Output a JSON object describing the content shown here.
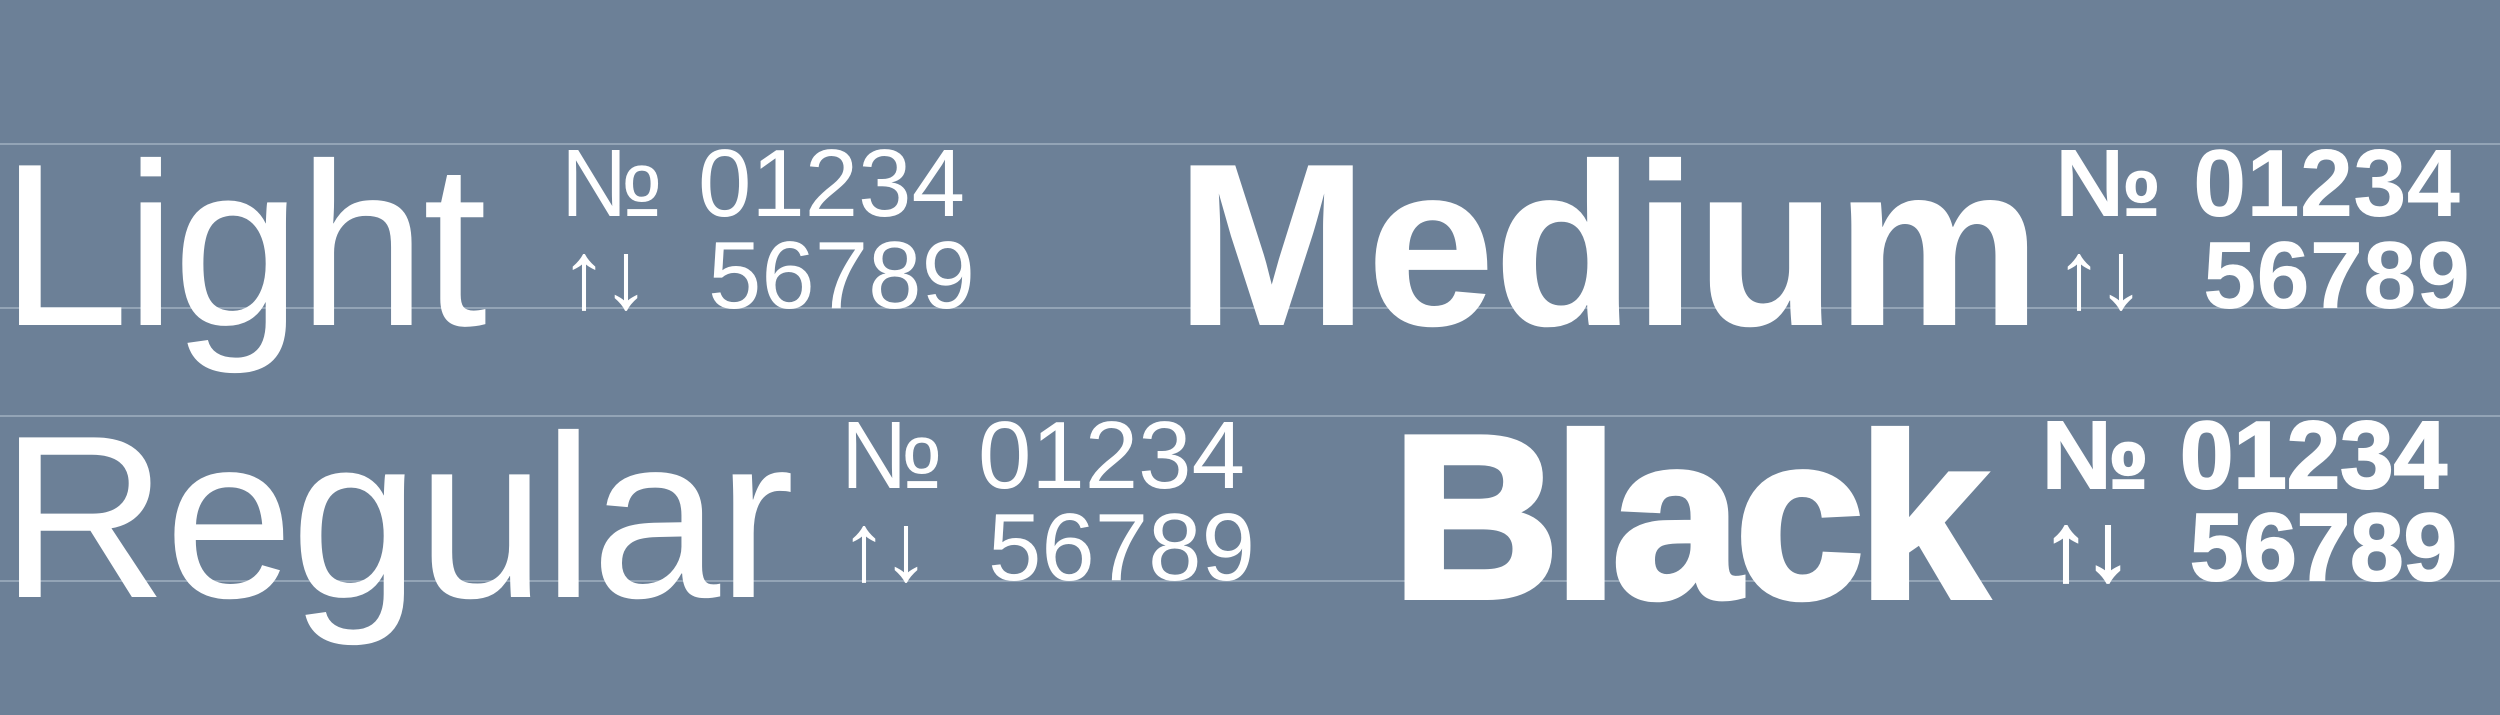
{
  "colors": {
    "background": "#6c8097",
    "text": "#ffffff",
    "guide_line": "#93a4b6"
  },
  "specimens": [
    {
      "weight": "Light",
      "numero": "№",
      "digits_top": "01234",
      "arrows": "↑↓",
      "digits_bottom": "56789"
    },
    {
      "weight": "Medium",
      "numero": "№",
      "digits_top": "01234",
      "arrows": "↑↓",
      "digits_bottom": "56789"
    },
    {
      "weight": "Regular",
      "numero": "№",
      "digits_top": "01234",
      "arrows": "↑↓",
      "digits_bottom": "56789"
    },
    {
      "weight": "Black",
      "numero": "№",
      "digits_top": "01234",
      "arrows": "↑↓",
      "digits_bottom": "56789"
    }
  ]
}
